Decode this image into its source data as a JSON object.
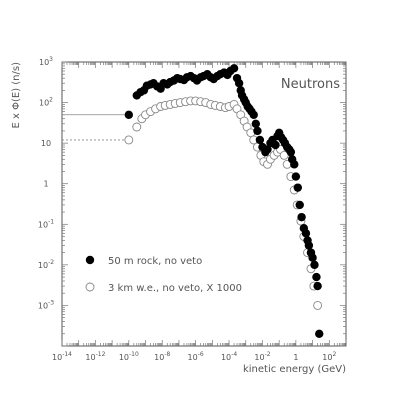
{
  "chart_data": {
    "type": "scatter",
    "title": "",
    "annotation": "Neutrons",
    "xlabel": "kinetic energy (GeV)",
    "ylabel": "E x Φ(E) (n/s)",
    "x_scale": "log",
    "y_scale": "log",
    "xlim": [
      1e-14,
      1000
    ],
    "ylim": [
      0.0001,
      1000
    ],
    "x_ticks": [
      {
        "value": 1e-14,
        "label": "10",
        "exp": "-14"
      },
      {
        "value": 1e-12,
        "label": "10",
        "exp": "-12"
      },
      {
        "value": 1e-10,
        "label": "10",
        "exp": "-10"
      },
      {
        "value": 1e-08,
        "label": "10",
        "exp": "-8"
      },
      {
        "value": 1e-06,
        "label": "10",
        "exp": "-6"
      },
      {
        "value": 0.0001,
        "label": "10",
        "exp": "-4"
      },
      {
        "value": 0.01,
        "label": "10",
        "exp": "-2"
      },
      {
        "value": 1,
        "label": "1",
        "exp": ""
      },
      {
        "value": 100,
        "label": "10",
        "exp": "2"
      }
    ],
    "y_ticks": [
      {
        "value": 1000,
        "label": "10",
        "exp": "3"
      },
      {
        "value": 100,
        "label": "10",
        "exp": "2"
      },
      {
        "value": 10,
        "label": "10",
        "exp": ""
      },
      {
        "value": 1,
        "label": "1",
        "exp": ""
      },
      {
        "value": 0.1,
        "label": "10",
        "exp": "-1"
      },
      {
        "value": 0.01,
        "label": "10",
        "exp": "-2"
      },
      {
        "value": 0.001,
        "label": "10",
        "exp": "-3"
      }
    ],
    "legend_placement": "bottom-left",
    "series": [
      {
        "name": "50 m rock, no veto",
        "marker": "filled-circle",
        "color": "#000000",
        "x": [
          1e-10,
          3e-10,
          5e-10,
          8e-10,
          1.2e-09,
          2e-09,
          3e-09,
          5e-09,
          8e-09,
          1.2e-08,
          2e-08,
          3e-08,
          5e-08,
          8e-08,
          1.2e-07,
          2e-07,
          3e-07,
          5e-07,
          8e-07,
          1.2e-06,
          2e-06,
          3e-06,
          5e-06,
          8e-06,
          1.2e-05,
          2e-05,
          3e-05,
          5e-05,
          8e-05,
          0.00012,
          0.0002,
          0.0003,
          0.0004,
          0.0005,
          0.0006,
          0.0008,
          0.001,
          0.0013,
          0.0017,
          0.0022,
          0.003,
          0.004,
          0.005,
          0.007,
          0.01,
          0.015,
          0.02,
          0.03,
          0.04,
          0.06,
          0.08,
          0.1,
          0.13,
          0.17,
          0.22,
          0.3,
          0.4,
          0.5,
          0.6,
          0.8,
          1.0,
          1.3,
          1.7,
          2.2,
          3,
          4,
          5,
          6,
          8,
          10,
          13,
          17,
          20,
          25
        ],
        "y": [
          50,
          150,
          180,
          200,
          260,
          280,
          300,
          250,
          220,
          300,
          280,
          320,
          350,
          400,
          380,
          360,
          420,
          450,
          400,
          350,
          420,
          450,
          500,
          420,
          380,
          450,
          500,
          550,
          480,
          600,
          700,
          400,
          300,
          200,
          150,
          120,
          100,
          80,
          70,
          60,
          50,
          30,
          20,
          12,
          8,
          6,
          7,
          10,
          12,
          9,
          15,
          18,
          14,
          12,
          10,
          8,
          7,
          6,
          4,
          3,
          1.5,
          0.8,
          0.3,
          0.15,
          0.08,
          0.06,
          0.04,
          0.03,
          0.02,
          0.015,
          0.01,
          0.005,
          0.003,
          0.0002
        ]
      },
      {
        "name": "3 km w.e., no veto, X 1000",
        "marker": "open-circle",
        "color": "#888888",
        "x": [
          1e-10,
          3e-10,
          6e-10,
          1e-09,
          2e-09,
          4e-09,
          8e-09,
          1.5e-08,
          3e-08,
          6e-08,
          1.2e-07,
          2.5e-07,
          5e-07,
          1e-06,
          2e-06,
          4e-06,
          8e-06,
          1.5e-05,
          3e-05,
          6e-05,
          0.0001,
          0.0002,
          0.0003,
          0.0005,
          0.0008,
          0.0012,
          0.002,
          0.003,
          0.005,
          0.008,
          0.012,
          0.02,
          0.03,
          0.05,
          0.08,
          0.12,
          0.2,
          0.3,
          0.5,
          0.8,
          1.2,
          2,
          3,
          5,
          8,
          12,
          20
        ],
        "y": [
          12,
          25,
          40,
          50,
          60,
          70,
          80,
          85,
          90,
          95,
          100,
          105,
          110,
          110,
          105,
          100,
          90,
          85,
          80,
          75,
          80,
          90,
          70,
          50,
          35,
          25,
          18,
          12,
          8,
          5,
          3.5,
          3,
          4,
          5,
          6,
          7,
          5,
          3,
          1.5,
          0.7,
          0.3,
          0.12,
          0.05,
          0.02,
          0.008,
          0.003,
          0.001
        ]
      }
    ],
    "reference_lines": [
      {
        "series": "50 m rock, no veto",
        "style": "solid",
        "y": 50,
        "x_end": 1e-10
      },
      {
        "series": "3 km w.e., no veto, X 1000",
        "style": "dashed",
        "y": 12,
        "x_end": 1e-10
      }
    ]
  }
}
